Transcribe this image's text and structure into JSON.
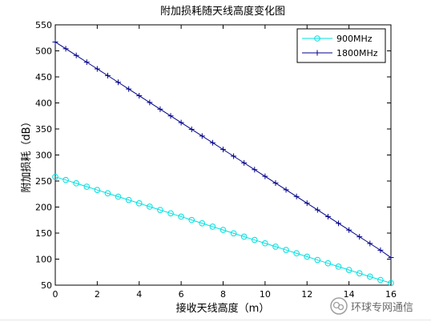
{
  "chart_data": {
    "type": "line",
    "title": "附加损耗随天线高度变化图",
    "xlabel": "接收天线高度（m）",
    "ylabel": "附加损耗（dB）",
    "xlim": [
      0,
      16
    ],
    "ylim": [
      50,
      550
    ],
    "xticks": [
      0,
      2,
      4,
      6,
      8,
      10,
      12,
      14,
      16
    ],
    "yticks": [
      50,
      100,
      150,
      200,
      250,
      300,
      350,
      400,
      450,
      500,
      550
    ],
    "grid": false,
    "legend_position": "top-right",
    "x": [
      0,
      0.5,
      1,
      1.5,
      2,
      2.5,
      3,
      3.5,
      4,
      4.5,
      5,
      5.5,
      6,
      6.5,
      7,
      7.5,
      8,
      8.5,
      9,
      9.5,
      10,
      10.5,
      11,
      11.5,
      12,
      12.5,
      13,
      13.5,
      14,
      14.5,
      15,
      15.5,
      16
    ],
    "series": [
      {
        "name": "900MHz",
        "color": "#00e0e0",
        "marker": "circle",
        "values": [
          258,
          252,
          245.6,
          239.2,
          232.8,
          226.4,
          220,
          213.6,
          207.2,
          200.8,
          194.4,
          188,
          181.6,
          175.2,
          168.8,
          162.4,
          156,
          149.6,
          143.2,
          136.8,
          130.4,
          124,
          117.6,
          111.2,
          104.8,
          98.4,
          92,
          85.6,
          79.2,
          72.8,
          66.4,
          60,
          54
        ]
      },
      {
        "name": "1800MHz",
        "color": "#00008b",
        "marker": "plus",
        "values": [
          517,
          504.1,
          491.2,
          478.3,
          465.4,
          452.5,
          439.6,
          426.7,
          413.8,
          400.9,
          388,
          375.1,
          362.2,
          349.3,
          336.4,
          323.5,
          310.6,
          297.7,
          284.8,
          271.9,
          259,
          246.1,
          233.2,
          220.3,
          207.4,
          194.5,
          181.6,
          168.7,
          155.8,
          142.9,
          130,
          117.1,
          103
        ]
      }
    ]
  },
  "watermark": {
    "text": "环球专网通信",
    "color": "#333333"
  }
}
